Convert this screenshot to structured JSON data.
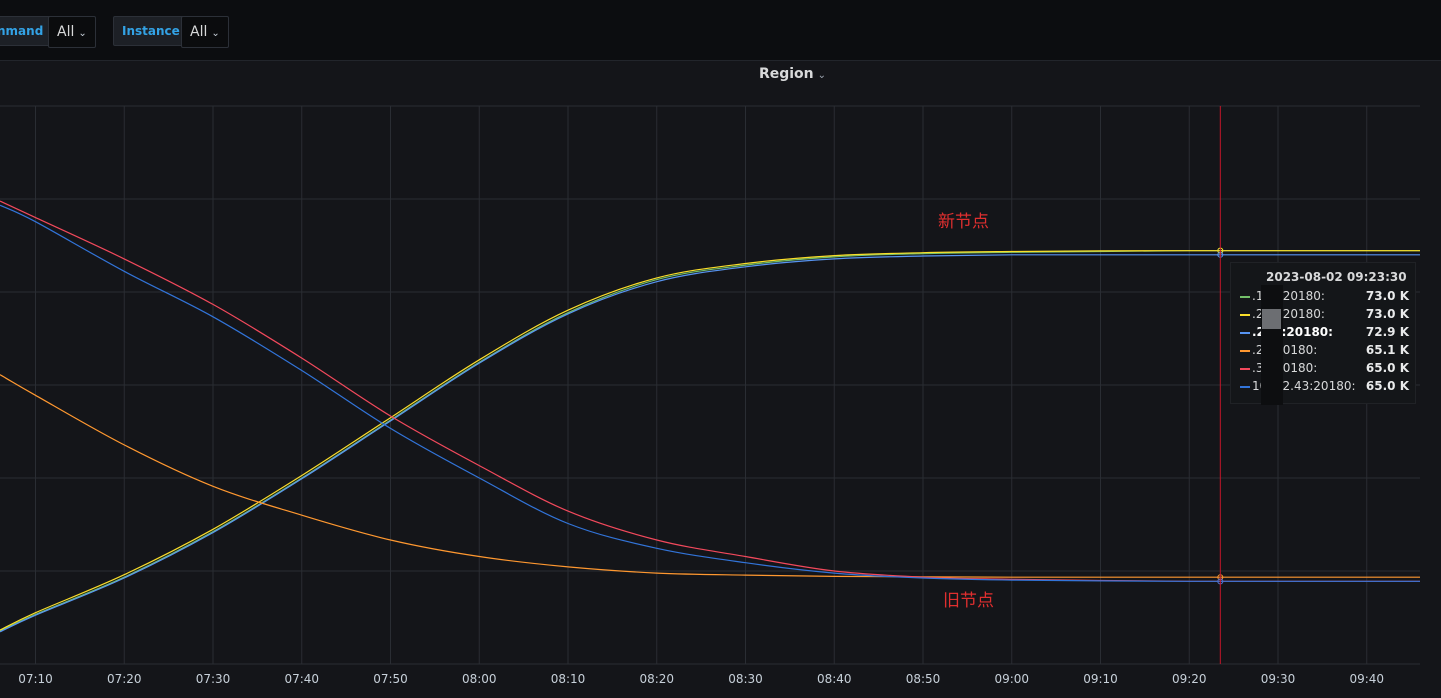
{
  "variables": [
    {
      "label": "nmand",
      "value": "All"
    },
    {
      "label": "Instance",
      "value": "All"
    }
  ],
  "panel": {
    "title": "Region"
  },
  "annotations": {
    "new_nodes": "新节点",
    "old_nodes": "旧节点"
  },
  "tooltip": {
    "time": "2023-08-02 09:23:30",
    "rows": [
      {
        "name": ".189:20180:",
        "value": "73.0 K",
        "color": "#73bf69"
      },
      {
        "name": ".211:20180:",
        "value": "73.0 K",
        "color": "#fade2a"
      },
      {
        "name": ".240:20180:",
        "value": "72.9 K",
        "color": "#5794f2"
      },
      {
        "name": ".25:20180:",
        "value": "65.1 K",
        "color": "#ff9830"
      },
      {
        "name": ".35:20180:",
        "value": "65.0 K",
        "color": "#f2495c"
      },
      {
        "name": "10.5.2.43:20180:",
        "value": "65.0 K",
        "color": "#3274d9"
      }
    ]
  },
  "chart_data": {
    "type": "line",
    "title": "Region",
    "x_ticks": [
      "07:10",
      "07:20",
      "07:30",
      "07:40",
      "07:50",
      "08:00",
      "08:10",
      "08:20",
      "08:30",
      "08:40",
      "08:50",
      "09:00",
      "09:10",
      "09:20",
      "09:30",
      "09:40"
    ],
    "xlim": [
      "07:06",
      "09:46"
    ],
    "ylim": [
      63000,
      76500
    ],
    "cursor_time": "09:23:30",
    "grid": true,
    "x": [
      "07:06",
      "07:10",
      "07:20",
      "07:30",
      "07:40",
      "07:50",
      "08:00",
      "08:10",
      "08:20",
      "08:30",
      "08:40",
      "08:50",
      "09:00",
      "09:10",
      "09:20",
      "09:30",
      "09:40",
      "09:46"
    ],
    "series": [
      {
        "name": ".189:20180",
        "color": "#73bf69",
        "values": [
          63800,
          64200,
          65100,
          66200,
          67500,
          68900,
          70300,
          71500,
          72300,
          72650,
          72850,
          72930,
          72960,
          72980,
          73000,
          73000,
          73000,
          73000
        ]
      },
      {
        "name": ".211:20180",
        "color": "#fade2a",
        "values": [
          63820,
          64240,
          65160,
          66260,
          67560,
          68960,
          70360,
          71560,
          72340,
          72690,
          72880,
          72950,
          72980,
          72995,
          73000,
          73000,
          73000,
          73000
        ]
      },
      {
        "name": ".240:20180",
        "color": "#5794f2",
        "values": [
          63780,
          64180,
          65080,
          66180,
          67480,
          68880,
          70280,
          71470,
          72250,
          72610,
          72800,
          72870,
          72900,
          72900,
          72900,
          72900,
          72900,
          72900
        ]
      },
      {
        "name": ".25:20180",
        "color": "#ff9830",
        "values": [
          70000,
          69500,
          68300,
          67300,
          66600,
          66000,
          65600,
          65350,
          65200,
          65150,
          65120,
          65110,
          65100,
          65100,
          65100,
          65100,
          65100,
          65100
        ]
      },
      {
        "name": ".35:20180",
        "color": "#f2495c",
        "values": [
          74200,
          73800,
          72800,
          71700,
          70400,
          69000,
          67800,
          66700,
          66000,
          65600,
          65250,
          65100,
          65050,
          65020,
          65000,
          65000,
          65000,
          65000
        ]
      },
      {
        "name": "10.5.2.43:20180",
        "color": "#3274d9",
        "values": [
          74100,
          73700,
          72500,
          71400,
          70100,
          68700,
          67500,
          66400,
          65800,
          65450,
          65200,
          65080,
          65030,
          65010,
          65000,
          65000,
          65000,
          65000
        ]
      }
    ]
  }
}
